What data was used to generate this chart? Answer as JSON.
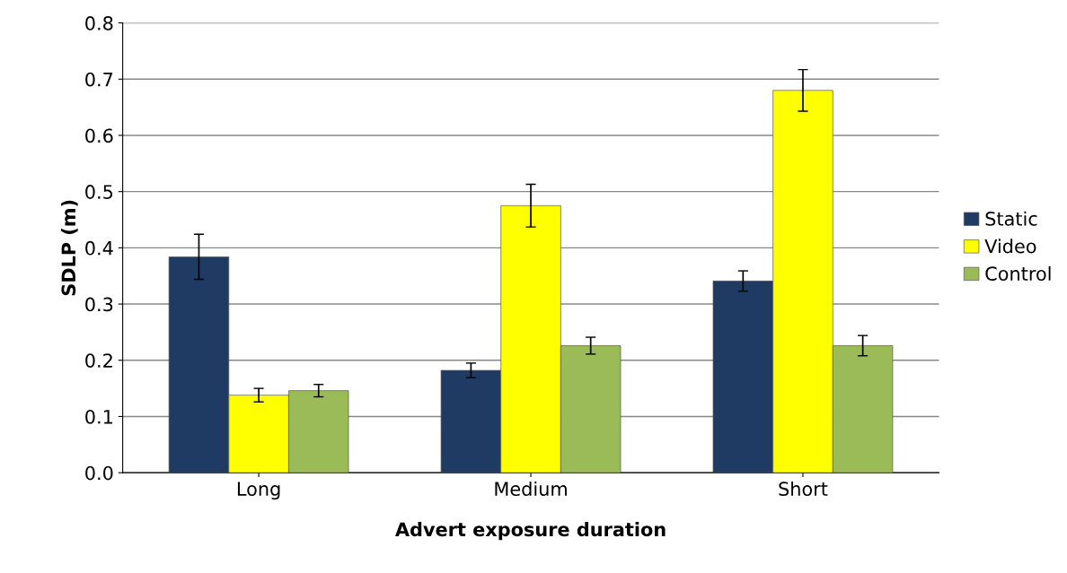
{
  "chart_data": {
    "type": "bar",
    "xlabel": "Advert exposure duration",
    "ylabel": "SDLP (m)",
    "categories": [
      "Long",
      "Medium",
      "Short"
    ],
    "series": [
      {
        "name": "Static",
        "color": "#1f3b63",
        "values": [
          0.384,
          0.182,
          0.341
        ],
        "errors": [
          0.04,
          0.013,
          0.018
        ]
      },
      {
        "name": "Video",
        "color": "#ffff00",
        "values": [
          0.138,
          0.475,
          0.68
        ],
        "errors": [
          0.012,
          0.038,
          0.037
        ]
      },
      {
        "name": "Control",
        "color": "#9bbb59",
        "values": [
          0.146,
          0.226,
          0.226
        ],
        "errors": [
          0.011,
          0.015,
          0.018
        ]
      }
    ],
    "ylim": [
      0,
      0.8
    ],
    "yticks": [
      {
        "value": 0,
        "label": "0.0"
      },
      0.1,
      0.2,
      0.3,
      0.4,
      0.5,
      0.6,
      0.7,
      0.8
    ],
    "grid": "y",
    "legend": "right"
  }
}
